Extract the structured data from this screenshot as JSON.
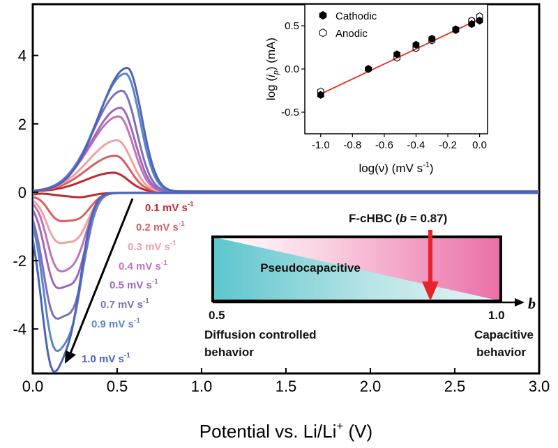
{
  "chart_data": [
    {
      "type": "line",
      "xlabel": "Potential vs. Li/Li+ (V)",
      "xlabel_parts": {
        "main": "Potential vs. Li/Li",
        "sup": "+",
        "unit": " (V)"
      },
      "ylabel": "",
      "xlim": [
        0.0,
        3.0
      ],
      "ylim": [
        -5.3,
        5.5
      ],
      "x_ticks": [
        "0.0",
        "0.5",
        "1.0",
        "1.5",
        "2.0",
        "2.5",
        "3.0"
      ],
      "y_ticks": [
        "-4",
        "-2",
        "0",
        "2",
        "4"
      ],
      "series": [
        {
          "name": "0.1 mV s-1",
          "color": "#c0282a",
          "anodic_peak": [
            0.48,
            0.55
          ],
          "cathodic_peaks": [
            [
              0.15,
              -0.05
            ],
            [
              0.28,
              -0.12
            ]
          ]
        },
        {
          "name": "0.2 mV s-1",
          "color": "#db5d5d",
          "anodic_peak": [
            0.49,
            1.05
          ],
          "cathodic_peaks": [
            [
              0.14,
              -0.65
            ],
            [
              0.27,
              -0.7
            ]
          ]
        },
        {
          "name": "0.3 mV s-1",
          "color": "#f2a0a0",
          "anodic_peak": [
            0.5,
            1.5
          ],
          "cathodic_peaks": [
            [
              0.13,
              -1.15
            ],
            [
              0.26,
              -1.25
            ]
          ]
        },
        {
          "name": "0.4 mV s-1",
          "color": "#c073b5",
          "anodic_peak": [
            0.51,
            2.2
          ],
          "cathodic_peaks": [
            [
              0.13,
              -1.7
            ],
            [
              0.25,
              -1.8
            ]
          ]
        },
        {
          "name": "0.5 mV s-1",
          "color": "#a066bd",
          "anodic_peak": [
            0.52,
            2.45
          ],
          "cathodic_peaks": [
            [
              0.12,
              -2.2
            ],
            [
              0.25,
              -2.35
            ]
          ]
        },
        {
          "name": "0.7 mV s-1",
          "color": "#7d6fc0",
          "anodic_peak": [
            0.53,
            2.95
          ],
          "cathodic_peaks": [
            [
              0.11,
              -2.9
            ],
            [
              0.24,
              -3.1
            ]
          ]
        },
        {
          "name": "0.9 mV s-1",
          "color": "#5a85cc",
          "anodic_peak": [
            0.55,
            3.45
          ],
          "cathodic_peaks": [
            [
              0.11,
              -3.5
            ],
            [
              0.23,
              -3.5
            ]
          ]
        },
        {
          "name": "1.0 mV s-1",
          "color": "#4c63b8",
          "anodic_peak": [
            0.56,
            3.62
          ],
          "cathodic_peaks": [
            [
              0.1,
              -4.1
            ],
            [
              0.22,
              -3.7
            ]
          ]
        }
      ]
    },
    {
      "type": "scatter",
      "xlabel": "log(ν) (mV s-1)",
      "ylabel": "log (ip) (mA)",
      "xlim": [
        -1.1,
        0.05
      ],
      "ylim": [
        -0.75,
        0.75
      ],
      "x_ticks": [
        "-1.0",
        "-0.8",
        "-0.6",
        "-0.4",
        "-0.2",
        "0.0"
      ],
      "y_ticks": [
        "-0.5",
        "0.0",
        "0.5"
      ],
      "legend_position": "top-left",
      "series": [
        {
          "name": "Cathodic",
          "marker": "filled-hexagon",
          "x": [
            -1.0,
            -0.7,
            -0.52,
            -0.4,
            -0.3,
            -0.15,
            -0.05,
            0.0
          ],
          "y": [
            -0.3,
            0.0,
            0.17,
            0.28,
            0.35,
            0.46,
            0.52,
            0.56
          ]
        },
        {
          "name": "Anodic",
          "marker": "open-hexagon",
          "x": [
            -1.0,
            -0.7,
            -0.52,
            -0.4,
            -0.3,
            -0.15,
            -0.05,
            0.0
          ],
          "y": [
            -0.26,
            0.0,
            0.13,
            0.24,
            0.33,
            0.45,
            0.56,
            0.61
          ]
        }
      ],
      "fit_line": {
        "color": "#e03020",
        "x": [
          -1.0,
          0.0
        ],
        "y": [
          -0.29,
          0.58
        ]
      }
    }
  ],
  "annotations": {
    "rate_labels": [
      "0.1 mV s-1",
      "0.2 mV s-1",
      "0.3 mV s-1",
      "0.4 mV s-1",
      "0.5 mV s-1",
      "0.7 mV s-1",
      "0.9 mV s-1",
      "1.0 mV s-1"
    ],
    "rate_label_colors": [
      "#c0282a",
      "#db5d5d",
      "#f2a0a0",
      "#c073b5",
      "#a066bd",
      "#7d6fc0",
      "#5a85cc",
      "#4c63b8"
    ],
    "material": "F-cHBC",
    "b_value": "0.87",
    "pseudocapacitive": "Pseudocapacitive",
    "scale_min": "0.5",
    "scale_max": "1.0",
    "scale_axis": "b",
    "diffusion_line1": "Diffusion controlled",
    "diffusion_line2": "behavior",
    "capacitive_line1": "Capacitive",
    "capacitive_line2": "behavior",
    "arrow_color": "#e8232b"
  }
}
